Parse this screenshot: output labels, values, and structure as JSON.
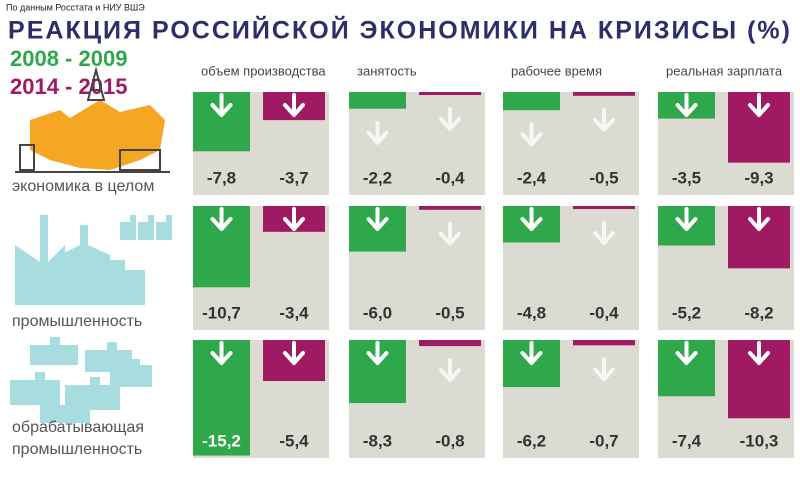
{
  "chart_data": {
    "type": "bar",
    "source": "По данным Росстата и НИУ ВШЭ",
    "title": "РЕАКЦИЯ РОССИЙСКОЙ ЭКОНОМИКИ НА КРИЗИСЫ (%)",
    "categories": [
      "объем производства",
      "занятость",
      "рабочее время",
      "реальная зарплата"
    ],
    "rows": [
      [
        "экономика в целом"
      ],
      [
        "промышленность"
      ],
      [
        "обрабатывающая",
        "промышленность"
      ]
    ],
    "series": [
      {
        "name": "2008 - 2009",
        "color": "#2ea84a",
        "values": [
          [
            -7.8,
            -2.2,
            -2.4,
            -3.5
          ],
          [
            -10.7,
            -6.0,
            -4.8,
            -5.2
          ],
          [
            -15.2,
            -8.3,
            -6.2,
            -7.4
          ]
        ],
        "value_labels": [
          [
            "-7,8",
            "-2,2",
            "-2,4",
            "-3,5"
          ],
          [
            "-10,7",
            "-6,0",
            "-4,8",
            "-5,2"
          ],
          [
            "-15,2",
            "-8,3",
            "-6,2",
            "-7,4"
          ]
        ]
      },
      {
        "name": "2014 - 2015",
        "color": "#a01a63",
        "values": [
          [
            -3.7,
            -0.4,
            -0.5,
            -9.3
          ],
          [
            -3.4,
            -0.5,
            -0.4,
            -8.2
          ],
          [
            -5.4,
            -0.8,
            -0.7,
            -10.3
          ]
        ],
        "value_labels": [
          [
            "-3,7",
            "-0,4",
            "-0,5",
            "-9,3"
          ],
          [
            "-3,4",
            "-0,5",
            "-0,4",
            "-8,2"
          ],
          [
            "-5,4",
            "-0,8",
            "-0,7",
            "-10,3"
          ]
        ]
      }
    ]
  }
}
